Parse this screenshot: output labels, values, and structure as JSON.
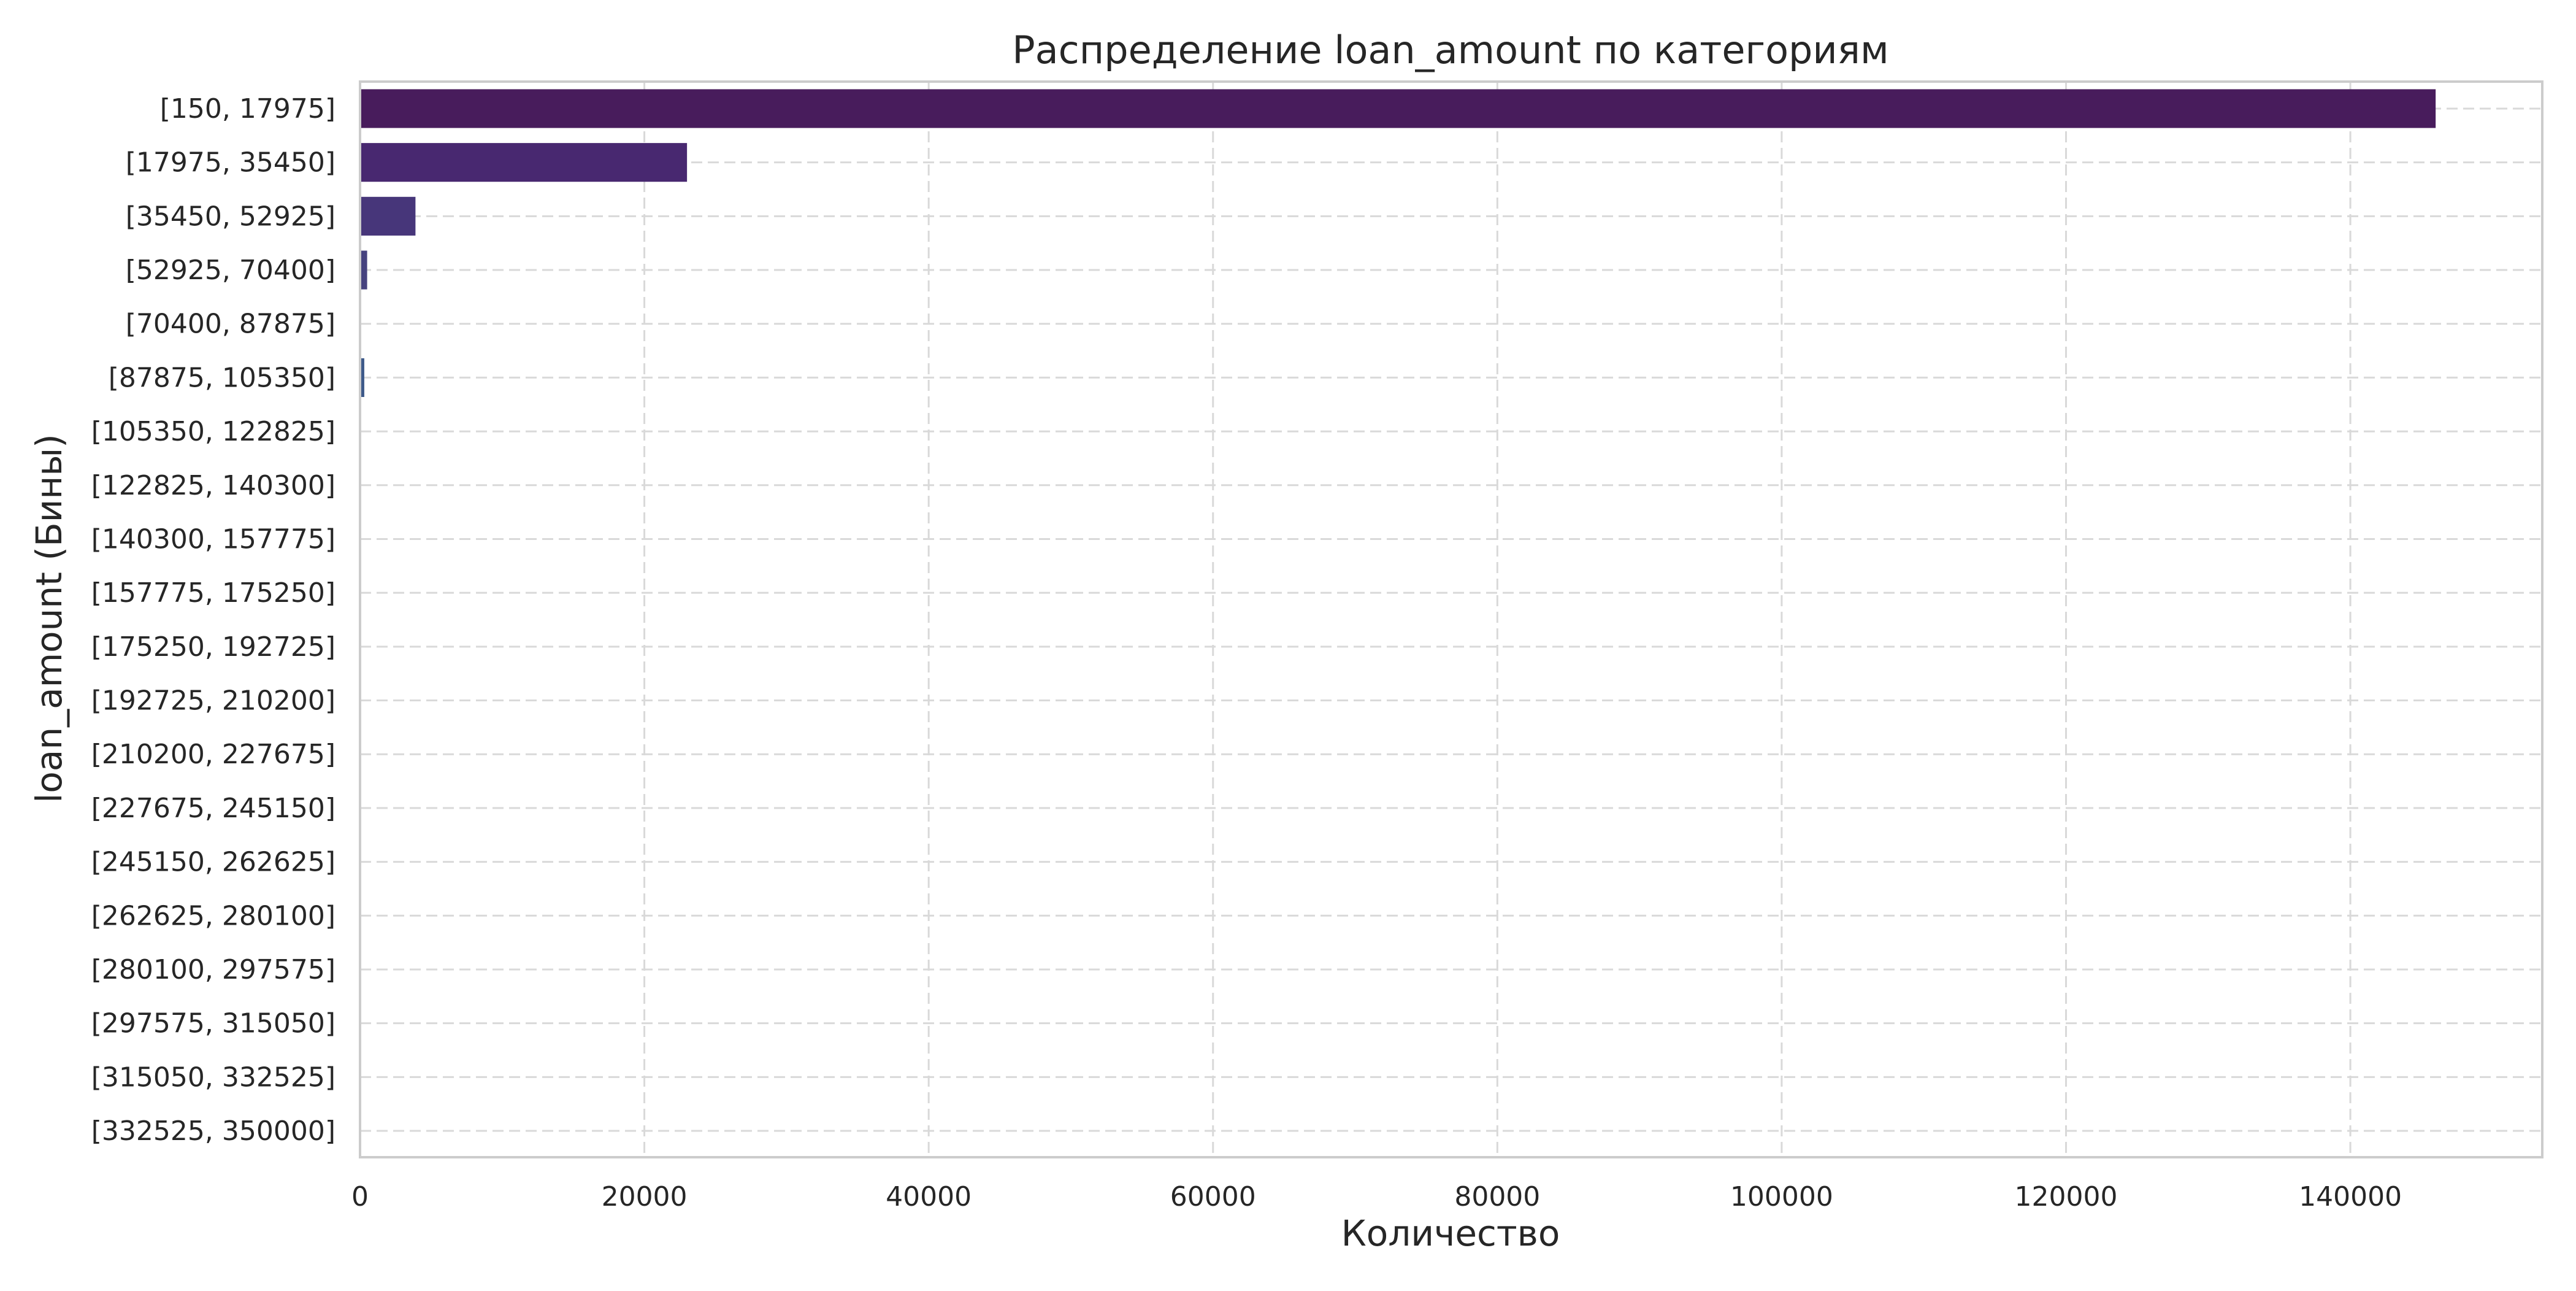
{
  "chart_data": {
    "type": "bar",
    "orientation": "horizontal",
    "title": "Распределение loan_amount по категориям",
    "xlabel": "Количество",
    "ylabel": "loan_amount (Бины)",
    "categories": [
      "[150, 17975]",
      "[17975, 35450]",
      "[35450, 52925]",
      "[52925, 70400]",
      "[70400, 87875]",
      "[87875, 105350]",
      "[105350, 122825]",
      "[122825, 140300]",
      "[140300, 157775]",
      "[157775, 175250]",
      "[175250, 192725]",
      "[192725, 210200]",
      "[210200, 227675]",
      "[227675, 245150]",
      "[245150, 262625]",
      "[262625, 280100]",
      "[280100, 297575]",
      "[297575, 315050]",
      "[315050, 332525]",
      "[332525, 350000]"
    ],
    "values": [
      146000,
      23000,
      3900,
      500,
      0,
      300,
      0,
      0,
      0,
      0,
      0,
      0,
      0,
      0,
      0,
      0,
      0,
      0,
      0,
      0
    ],
    "colors": [
      "#481c5c",
      "#482870",
      "#47367a",
      "#46427f",
      "#434e84",
      "#3e5a8a",
      "#3a6690",
      "#357195",
      "#317c99",
      "#2d879b",
      "#28929c",
      "#239d99",
      "#22a893",
      "#29b386",
      "#3dbd76",
      "#55c667",
      "#74cf55",
      "#96d642",
      "#bbdc30",
      "#dde327"
    ],
    "xlim": [
      0,
      153500
    ],
    "xticks": [
      0,
      20000,
      40000,
      60000,
      80000,
      100000,
      120000,
      140000
    ],
    "xtick_labels": [
      "0",
      "20000",
      "40000",
      "60000",
      "80000",
      "100000",
      "120000",
      "140000"
    ],
    "grid": true,
    "legend": false
  }
}
